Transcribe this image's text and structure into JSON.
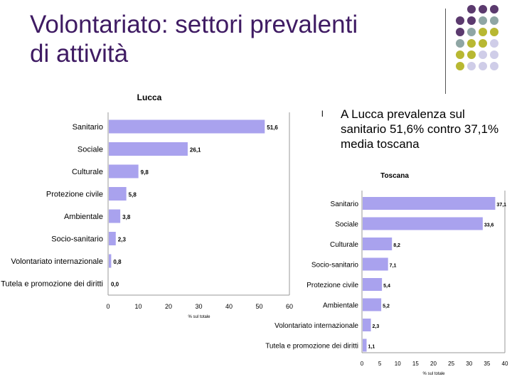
{
  "slide": {
    "title_line1": "Volontariato: settori prevalenti",
    "title_line2": "di attività",
    "title_color": "#3f1b63",
    "bullet": "A Lucca prevalenza sul sanitario 51,6% contro 37,1% media toscana",
    "bullet_marker": "l"
  },
  "decor": {
    "colors": {
      "purple": "#5b3a6e",
      "teal": "#8fa6a4",
      "olive": "#b8b832",
      "lavender": "#cfcde8"
    },
    "grid": [
      [
        "purple",
        "purple",
        "purple"
      ],
      [
        "purple",
        "purple",
        "teal",
        "teal"
      ],
      [
        "purple",
        "teal",
        "olive",
        "olive"
      ],
      [
        "teal",
        "olive",
        "olive",
        "lavender"
      ],
      [
        "olive",
        "olive",
        "lavender",
        "lavender"
      ],
      [
        "olive",
        "lavender",
        "lavender",
        "lavender"
      ]
    ]
  },
  "chart_data": [
    {
      "type": "bar",
      "orientation": "horizontal",
      "title": "Lucca",
      "xlabel": "% sul totale",
      "ylabel": "",
      "xlim": [
        0,
        60
      ],
      "xticks": [
        "0",
        "10",
        "20",
        "30",
        "40",
        "50",
        "60"
      ],
      "bar_color": "#a9a2ee",
      "categories": [
        "Sanitario",
        "Sociale",
        "Culturale",
        "Protezione civile",
        "Ambientale",
        "Socio-sanitario",
        "Volontariato internazionale",
        "Tutela e promozione dei diritti"
      ],
      "values": [
        51.6,
        26.1,
        9.8,
        5.8,
        3.8,
        2.3,
        0.8,
        0.0
      ],
      "value_labels": [
        "51,6",
        "26,1",
        "9,8",
        "5,8",
        "3,8",
        "2,3",
        "0,8",
        "0,0"
      ]
    },
    {
      "type": "bar",
      "orientation": "horizontal",
      "title": "Toscana",
      "xlabel": "% sul totale",
      "ylabel": "",
      "xlim": [
        0,
        40
      ],
      "xticks": [
        "0",
        "5",
        "10",
        "15",
        "20",
        "25",
        "30",
        "35",
        "40"
      ],
      "bar_color": "#a9a2ee",
      "categories": [
        "Sanitario",
        "Sociale",
        "Culturale",
        "Socio-sanitario",
        "Protezione civile",
        "Ambientale",
        "Volontariato internazionale",
        "Tutela e promozione dei diritti"
      ],
      "values": [
        37.1,
        33.6,
        8.2,
        7.1,
        5.4,
        5.2,
        2.3,
        1.1
      ],
      "value_labels": [
        "37,1",
        "33,6",
        "8,2",
        "7,1",
        "5,4",
        "5,2",
        "2,3",
        "1,1"
      ]
    }
  ]
}
